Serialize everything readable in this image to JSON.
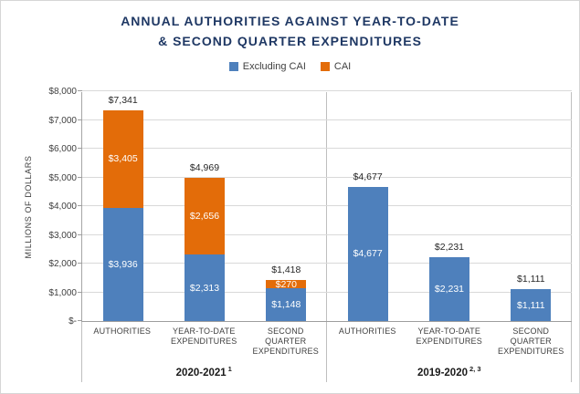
{
  "title": {
    "line1": "ANNUAL AUTHORITIES AGAINST YEAR-TO-DATE",
    "line2": "& SECOND QUARTER EXPENDITURES"
  },
  "legend": {
    "items": [
      {
        "label": "Excluding CAI",
        "color": "#4E80BC"
      },
      {
        "label": "CAI",
        "color": "#E36C09"
      }
    ]
  },
  "colors": {
    "excluding_cai": "#4E80BC",
    "cai": "#E36C09",
    "title_text": "#1F3864",
    "axis_text": "#404040",
    "gridline": "#D9D9D9"
  },
  "chart_data": {
    "type": "bar",
    "stacked": true,
    "title": "ANNUAL AUTHORITIES AGAINST YEAR-TO-DATE & SECOND QUARTER EXPENDITURES",
    "ylabel": "MILLIONS OF DOLLARS",
    "ylim": [
      0,
      8000
    ],
    "ytick_step": 1000,
    "ytick_labels": [
      "$-",
      "$1,000",
      "$2,000",
      "$3,000",
      "$4,000",
      "$5,000",
      "$6,000",
      "$7,000",
      "$8,000"
    ],
    "grid": true,
    "legend_position": "top",
    "series_names": [
      "Excluding CAI",
      "CAI"
    ],
    "groups": [
      {
        "label": "2020-2021",
        "footnote": "1",
        "bars": [
          {
            "category": "AUTHORITIES",
            "total": 7341,
            "total_label": "$7,341",
            "segments": [
              {
                "series": "Excluding CAI",
                "value": 3936,
                "label": "$3,936",
                "color": "#4E80BC"
              },
              {
                "series": "CAI",
                "value": 3405,
                "label": "$3,405",
                "color": "#E36C09"
              }
            ]
          },
          {
            "category": "YEAR-TO-DATE EXPENDITURES",
            "total": 4969,
            "total_label": "$4,969",
            "segments": [
              {
                "series": "Excluding CAI",
                "value": 2313,
                "label": "$2,313",
                "color": "#4E80BC"
              },
              {
                "series": "CAI",
                "value": 2656,
                "label": "$2,656",
                "color": "#E36C09"
              }
            ]
          },
          {
            "category": "SECOND QUARTER EXPENDITURES",
            "total": 1418,
            "total_label": "$1,418",
            "segments": [
              {
                "series": "Excluding CAI",
                "value": 1148,
                "label": "$1,148",
                "color": "#4E80BC"
              },
              {
                "series": "CAI",
                "value": 270,
                "label": "$270",
                "color": "#E36C09"
              }
            ]
          }
        ]
      },
      {
        "label": "2019-2020",
        "footnote": "2, 3",
        "bars": [
          {
            "category": "AUTHORITIES",
            "total": 4677,
            "total_label": "$4,677",
            "segments": [
              {
                "series": "Excluding CAI",
                "value": 4677,
                "label": "$4,677",
                "color": "#4E80BC"
              }
            ]
          },
          {
            "category": "YEAR-TO-DATE EXPENDITURES",
            "total": 2231,
            "total_label": "$2,231",
            "segments": [
              {
                "series": "Excluding CAI",
                "value": 2231,
                "label": "$2,231",
                "color": "#4E80BC"
              }
            ]
          },
          {
            "category": "SECOND QUARTER EXPENDITURES",
            "total": 1111,
            "total_label": "$1,111",
            "segments": [
              {
                "series": "Excluding CAI",
                "value": 1111,
                "label": "$1,111",
                "color": "#4E80BC"
              }
            ]
          }
        ]
      }
    ]
  }
}
